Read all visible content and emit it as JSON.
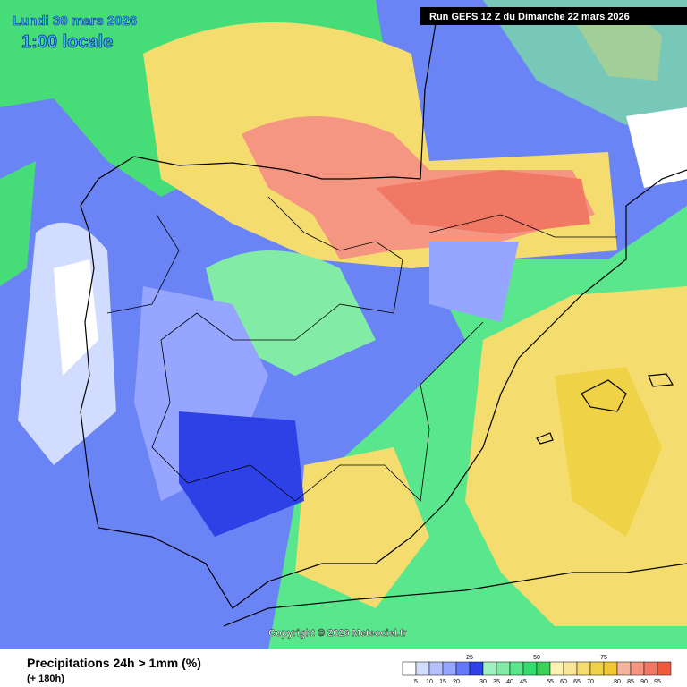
{
  "header": {
    "date": "Lundi 30 mars 2026",
    "time": "1:00 locale",
    "run": "Run GEFS 12 Z du Dimanche 22 mars 2026"
  },
  "copyright": "Copyright © 2026 Meteociel.fr",
  "footer": {
    "title": "Precipitations 24h > 1mm (%)",
    "lead": "(+ 180h)"
  },
  "legend": {
    "colors": [
      "#ffffff",
      "#d2dcff",
      "#b4c0ff",
      "#96a5ff",
      "#6478ff",
      "#2d41e6",
      "#a0f0c0",
      "#82eba5",
      "#5ae68c",
      "#32dc6e",
      "#3cd25a",
      "#fff0b4",
      "#fae696",
      "#f5dc6e",
      "#f0d246",
      "#f0c832",
      "#f5b4a0",
      "#f59682",
      "#f07864",
      "#f05a3c"
    ],
    "top_labels": [
      25,
      50,
      75
    ],
    "bottom_labels": [
      5,
      10,
      15,
      20,
      30,
      35,
      40,
      45,
      55,
      60,
      65,
      70,
      80,
      85,
      90,
      95
    ]
  }
}
